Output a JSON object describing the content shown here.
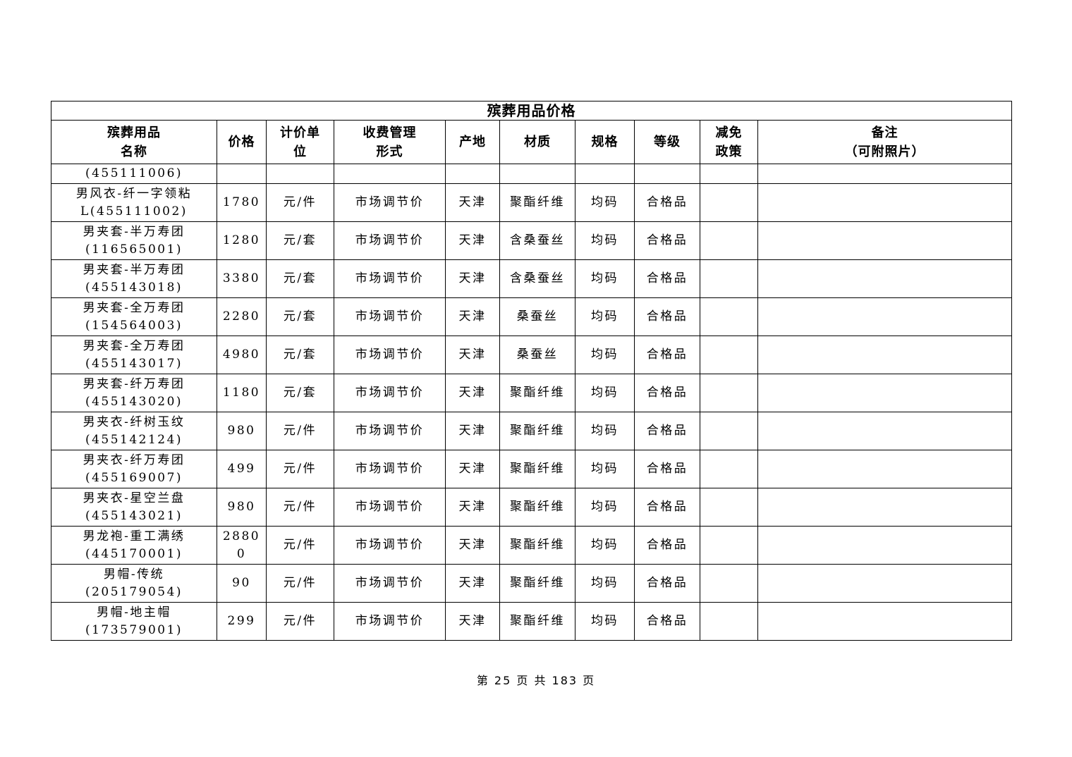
{
  "page": {
    "footer": "第 25 页 共 183 页"
  },
  "table": {
    "title": "殡葬用品价格",
    "columns": [
      {
        "key": "name",
        "label": "殡葬用品\n名称"
      },
      {
        "key": "price",
        "label": "价格"
      },
      {
        "key": "unit",
        "label": "计价单\n位"
      },
      {
        "key": "charge_mode",
        "label": "收费管理\n形式"
      },
      {
        "key": "origin",
        "label": "产地"
      },
      {
        "key": "material",
        "label": "材质"
      },
      {
        "key": "spec",
        "label": "规格"
      },
      {
        "key": "grade",
        "label": "等级"
      },
      {
        "key": "policy",
        "label": "减免\n政策"
      },
      {
        "key": "remark",
        "label": "备注\n（可附照片）"
      }
    ],
    "rows": [
      {
        "name": "(455111006)",
        "price": "",
        "unit": "",
        "charge_mode": "",
        "origin": "",
        "material": "",
        "spec": "",
        "grade": "",
        "policy": "",
        "remark": ""
      },
      {
        "name": "男风衣-纤一字领粘\nL(455111002)",
        "price": "1780",
        "unit": "元/件",
        "charge_mode": "市场调节价",
        "origin": "天津",
        "material": "聚酯纤维",
        "spec": "均码",
        "grade": "合格品",
        "policy": "",
        "remark": ""
      },
      {
        "name": "男夹套-半万寿团\n(116565001)",
        "price": "1280",
        "unit": "元/套",
        "charge_mode": "市场调节价",
        "origin": "天津",
        "material": "含桑蚕丝",
        "spec": "均码",
        "grade": "合格品",
        "policy": "",
        "remark": ""
      },
      {
        "name": "男夹套-半万寿团\n(455143018)",
        "price": "3380",
        "unit": "元/套",
        "charge_mode": "市场调节价",
        "origin": "天津",
        "material": "含桑蚕丝",
        "spec": "均码",
        "grade": "合格品",
        "policy": "",
        "remark": ""
      },
      {
        "name": "男夹套-全万寿团\n(154564003)",
        "price": "2280",
        "unit": "元/套",
        "charge_mode": "市场调节价",
        "origin": "天津",
        "material": "桑蚕丝",
        "spec": "均码",
        "grade": "合格品",
        "policy": "",
        "remark": ""
      },
      {
        "name": "男夹套-全万寿团\n(455143017)",
        "price": "4980",
        "unit": "元/套",
        "charge_mode": "市场调节价",
        "origin": "天津",
        "material": "桑蚕丝",
        "spec": "均码",
        "grade": "合格品",
        "policy": "",
        "remark": ""
      },
      {
        "name": "男夹套-纤万寿团\n(455143020)",
        "price": "1180",
        "unit": "元/套",
        "charge_mode": "市场调节价",
        "origin": "天津",
        "material": "聚酯纤维",
        "spec": "均码",
        "grade": "合格品",
        "policy": "",
        "remark": ""
      },
      {
        "name": "男夹衣-纤树玉纹\n(455142124)",
        "price": "980",
        "unit": "元/件",
        "charge_mode": "市场调节价",
        "origin": "天津",
        "material": "聚酯纤维",
        "spec": "均码",
        "grade": "合格品",
        "policy": "",
        "remark": ""
      },
      {
        "name": "男夹衣-纤万寿团\n(455169007)",
        "price": "499",
        "unit": "元/件",
        "charge_mode": "市场调节价",
        "origin": "天津",
        "material": "聚酯纤维",
        "spec": "均码",
        "grade": "合格品",
        "policy": "",
        "remark": ""
      },
      {
        "name": "男夹衣-星空兰盘\n(455143021)",
        "price": "980",
        "unit": "元/件",
        "charge_mode": "市场调节价",
        "origin": "天津",
        "material": "聚酯纤维",
        "spec": "均码",
        "grade": "合格品",
        "policy": "",
        "remark": ""
      },
      {
        "name": "男龙袍-重工满绣\n(445170001)",
        "price": "28800",
        "unit": "元/件",
        "charge_mode": "市场调节价",
        "origin": "天津",
        "material": "聚酯纤维",
        "spec": "均码",
        "grade": "合格品",
        "policy": "",
        "remark": ""
      },
      {
        "name": "男帽-传统\n(205179054)",
        "price": "90",
        "unit": "元/件",
        "charge_mode": "市场调节价",
        "origin": "天津",
        "material": "聚酯纤维",
        "spec": "均码",
        "grade": "合格品",
        "policy": "",
        "remark": ""
      },
      {
        "name": "男帽-地主帽\n(173579001)",
        "price": "299",
        "unit": "元/件",
        "charge_mode": "市场调节价",
        "origin": "天津",
        "material": "聚酯纤维",
        "spec": "均码",
        "grade": "合格品",
        "policy": "",
        "remark": ""
      }
    ]
  }
}
